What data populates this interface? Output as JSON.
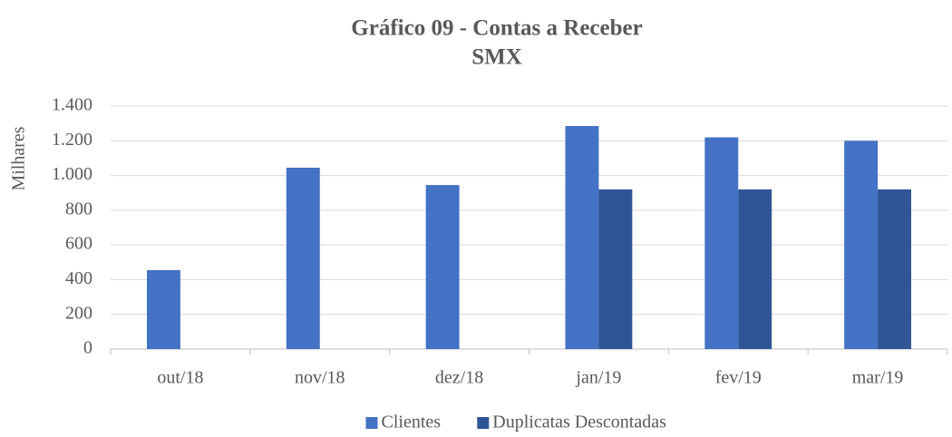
{
  "chart_data": {
    "type": "bar",
    "title": [
      "Gráfico 09 - Contas a Receber",
      "SMX"
    ],
    "y_label": "Milhares",
    "categories": [
      "out/18",
      "nov/18",
      "dez/18",
      "jan/19",
      "fev/19",
      "mar/19"
    ],
    "series": [
      {
        "name": "Clientes",
        "color": "#4472c4",
        "values": [
          455,
          1045,
          945,
          1285,
          1220,
          1200
        ]
      },
      {
        "name": "Duplicatas Descontadas",
        "color": "#2f5597",
        "values": [
          null,
          null,
          null,
          920,
          920,
          920
        ]
      }
    ],
    "ylim": [
      0,
      1400
    ],
    "yticks": [
      0,
      200,
      400,
      600,
      800,
      {
        "value": 1000,
        "label": "1.000"
      },
      {
        "value": 1200,
        "label": "1.200"
      },
      {
        "value": 1400,
        "label": "1.400"
      }
    ],
    "grid": true,
    "legend": "bottom"
  }
}
